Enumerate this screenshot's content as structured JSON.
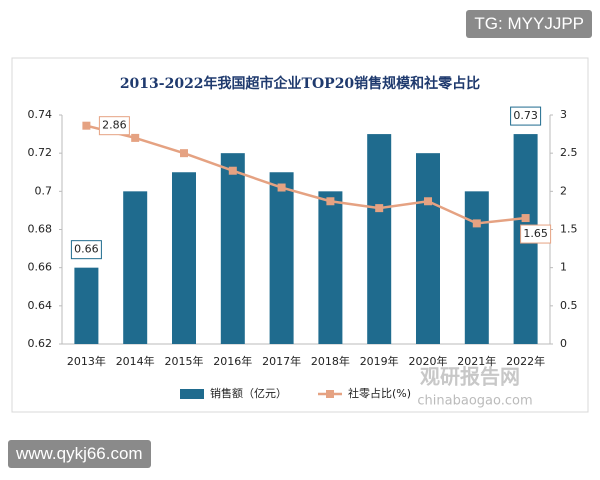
{
  "watermark_top": "TG: MYYJJPP",
  "watermark_bottom": "www.qykj66.com",
  "overlay": {
    "brand": "观研报告网",
    "url": "chinabaogao.com"
  },
  "chart_data": {
    "type": "bar",
    "title": "2013-2022年我国超市企业TOP20销售规模和社零占比",
    "categories": [
      "2013年",
      "2014年",
      "2015年",
      "2016年",
      "2017年",
      "2018年",
      "2019年",
      "2020年",
      "2021年",
      "2022年"
    ],
    "series": [
      {
        "name": "销售额（亿元）",
        "type": "bar",
        "color": "#1f6b8e",
        "axis": "y",
        "values": [
          0.66,
          0.7,
          0.71,
          0.72,
          0.71,
          0.7,
          0.73,
          0.72,
          0.7,
          0.73
        ],
        "labeled": [
          0,
          9
        ]
      },
      {
        "name": "社零占比(%)",
        "type": "line",
        "color": "#e5a282",
        "axis": "y2",
        "values": [
          2.86,
          2.7,
          2.5,
          2.27,
          2.05,
          1.87,
          1.78,
          1.87,
          1.58,
          1.65
        ],
        "labeled": [
          0,
          9
        ]
      }
    ],
    "ylim": [
      0.62,
      0.74
    ],
    "yticks": [
      0.62,
      0.64,
      0.66,
      0.68,
      0.7,
      0.72,
      0.74
    ],
    "y2lim": [
      0,
      3
    ],
    "y2ticks": [
      0,
      0.5,
      1,
      1.5,
      2,
      2.5,
      3
    ],
    "legend": "bottom"
  }
}
